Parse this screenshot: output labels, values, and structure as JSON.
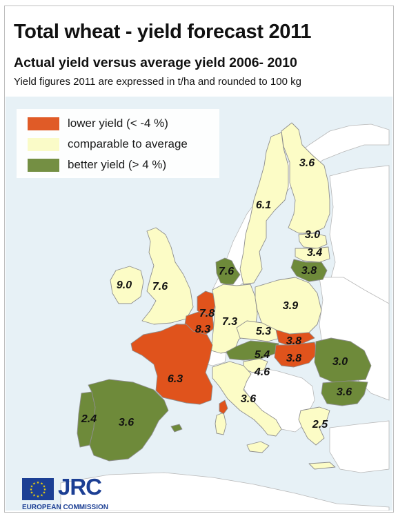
{
  "title": "Total wheat - yield forecast 2011",
  "subtitle": "Actual yield versus average yield 2006- 2010",
  "note": "Yield figures 2011 are expressed in t/ha and rounded to 100 kg",
  "colors": {
    "lower": "#e0531c",
    "comparable": "#fcfcc6",
    "better": "#6e8a3a",
    "sea": "#e7f1f6",
    "non_eu": "#ffffff"
  },
  "legend": [
    {
      "category": "lower",
      "label": "lower yield (< -4 %)"
    },
    {
      "category": "comparable",
      "label": "comparable to average"
    },
    {
      "category": "better",
      "label": "better yield (> 4 %)"
    }
  ],
  "regions": [
    {
      "id": "finland",
      "value": "3.6",
      "category": "comparable"
    },
    {
      "id": "sweden",
      "value": "6.1",
      "category": "comparable"
    },
    {
      "id": "estonia",
      "value": "3.0",
      "category": "comparable"
    },
    {
      "id": "latvia",
      "value": "3.4",
      "category": "comparable"
    },
    {
      "id": "lithuania",
      "value": "3.8",
      "category": "better"
    },
    {
      "id": "denmark",
      "value": "7.6",
      "category": "better"
    },
    {
      "id": "ireland",
      "value": "9.0",
      "category": "comparable"
    },
    {
      "id": "uk",
      "value": "7.6",
      "category": "comparable"
    },
    {
      "id": "netherlands",
      "value": "7.8",
      "category": "lower"
    },
    {
      "id": "belgium",
      "value": "8.3",
      "category": "lower"
    },
    {
      "id": "germany",
      "value": "7.3",
      "category": "comparable"
    },
    {
      "id": "poland",
      "value": "3.9",
      "category": "comparable"
    },
    {
      "id": "czech",
      "value": "5.3",
      "category": "comparable"
    },
    {
      "id": "slovakia",
      "value": "3.8",
      "category": "lower"
    },
    {
      "id": "hungary",
      "value": "3.8",
      "category": "lower"
    },
    {
      "id": "austria",
      "value": "5.4",
      "category": "better"
    },
    {
      "id": "slovenia",
      "value": "4.6",
      "category": "comparable"
    },
    {
      "id": "france",
      "value": "6.3",
      "category": "lower"
    },
    {
      "id": "romania",
      "value": "3.0",
      "category": "better"
    },
    {
      "id": "bulgaria",
      "value": "3.6",
      "category": "better"
    },
    {
      "id": "italy",
      "value": "3.6",
      "category": "comparable"
    },
    {
      "id": "spain",
      "value": "3.6",
      "category": "better"
    },
    {
      "id": "portugal",
      "value": "2.4",
      "category": "better"
    },
    {
      "id": "greece",
      "value": "2.5",
      "category": "comparable"
    }
  ],
  "logo": {
    "acronym": "JRC",
    "org": "EUROPEAN COMMISSION"
  }
}
